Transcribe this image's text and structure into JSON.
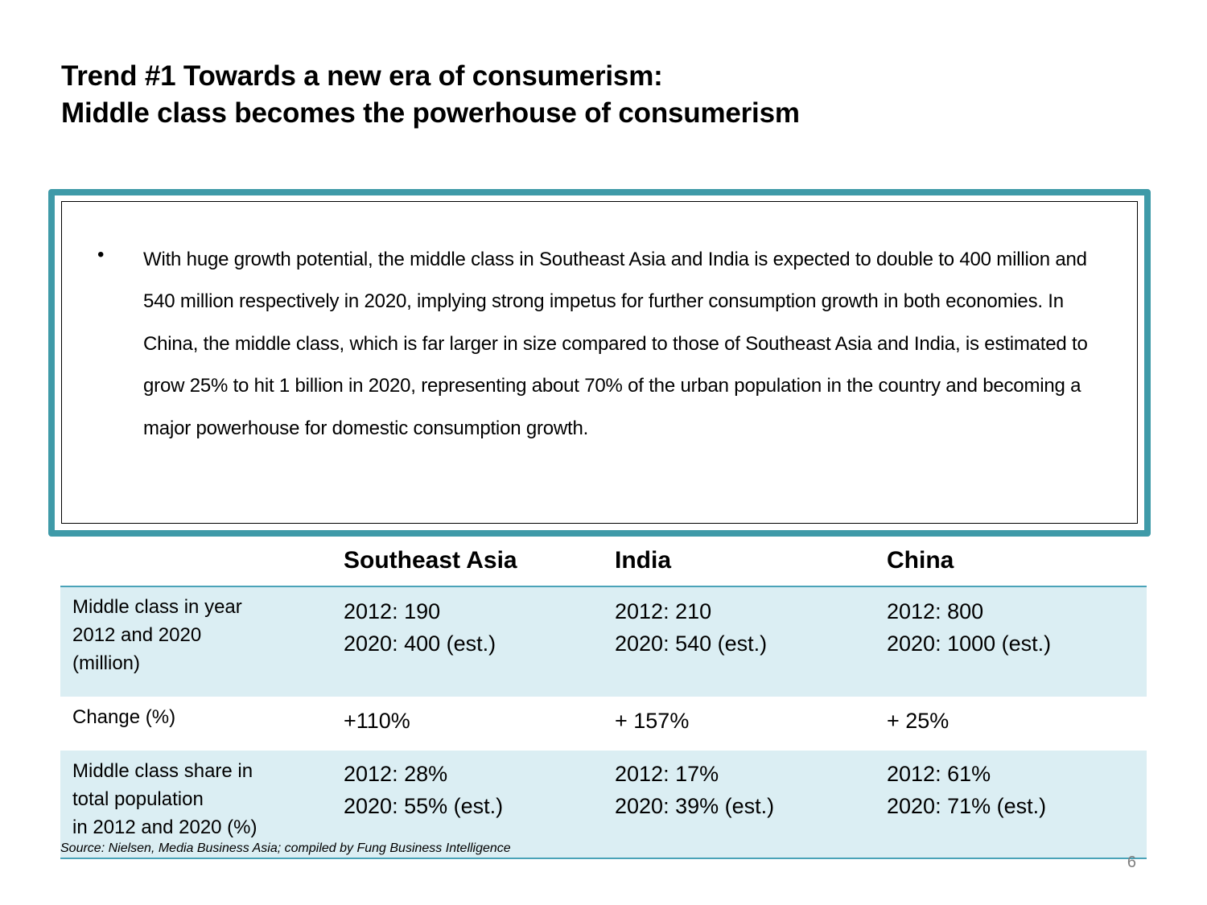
{
  "title": {
    "line1": "Trend #1 Towards a new era of consumerism:",
    "line2": "Middle class becomes the powerhouse of consumerism"
  },
  "textbox": {
    "bullet": "•",
    "text": "With huge growth potential, the middle class in Southeast Asia and India is expected to double to 400 million and 540 million respectively in 2020, implying strong impetus for further consumption growth in both economies. In China, the middle class, which is far larger in size compared to those of Southeast Asia and India, is estimated to grow 25% to hit 1 billion in 2020, representing about 70% of the urban population in the country and  becoming a major powerhouse for domestic consumption growth."
  },
  "table": {
    "headers": [
      "",
      "Southeast Asia",
      "India",
      "China"
    ],
    "rows": [
      {
        "label": [
          "Middle class in year",
          "2012 and 2020",
          "(million)"
        ],
        "cells": [
          [
            "2012: 190",
            "2020: 400 (est.)"
          ],
          [
            "2012: 210",
            "2020: 540  (est.)"
          ],
          [
            "2012: 800",
            "2020: 1000  (est.)"
          ]
        ]
      },
      {
        "label": [
          "Change (%)"
        ],
        "cells": [
          [
            "+110%"
          ],
          [
            "+ 157%"
          ],
          [
            "+ 25%"
          ]
        ]
      },
      {
        "label": [
          "Middle class share in",
          "total population",
          "in 2012 and 2020 (%)"
        ],
        "cells": [
          [
            "2012: 28%",
            "2020: 55% (est.)"
          ],
          [
            "2012: 17%",
            "2020: 39%  (est.)"
          ],
          [
            "2012: 61%",
            "2020: 71%  (est.)"
          ]
        ]
      }
    ]
  },
  "source": "Source: Nielsen, Media Business Asia; compiled by Fung Business Intelligence",
  "page_number": "6",
  "colors": {
    "accent": "#3f9aa8",
    "table_rule": "#4aa3b8",
    "row_shade": "#dbeef3",
    "page_number": "#7f7f7f"
  }
}
